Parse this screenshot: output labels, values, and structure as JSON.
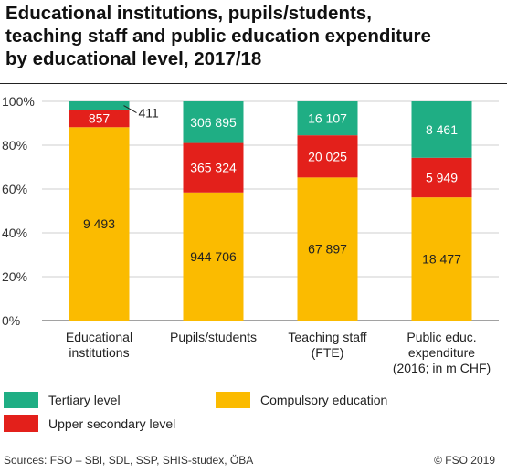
{
  "title": "Educational institutions, pupils/students,\nteaching staff and public education expenditure\nby educational level, 2017/18",
  "colors": {
    "tertiary": "#1fae84",
    "upper_secondary": "#e3201b",
    "compulsory": "#fbbb00"
  },
  "chart_data": {
    "type": "bar",
    "stacked": "percent",
    "categories": [
      "Educational\ninstitutions",
      "Pupils/students",
      "Teaching staff\n(FTE)",
      "Public educ.\nexpenditure\n(2016; in m CHF)"
    ],
    "series": [
      {
        "name": "Compulsory education",
        "values": [
          9493,
          944706,
          67897,
          18477
        ],
        "labels": [
          "9 493",
          "944 706",
          "67 897",
          "18 477"
        ]
      },
      {
        "name": "Upper secondary level",
        "values": [
          857,
          365324,
          20025,
          5949
        ],
        "labels": [
          "857",
          "365 324",
          "20 025",
          "5 949"
        ]
      },
      {
        "name": "Tertiary level",
        "values": [
          411,
          306895,
          16107,
          8461
        ],
        "labels": [
          "411",
          "306 895",
          "16 107",
          "8 461"
        ]
      }
    ],
    "ylim": [
      0,
      100
    ],
    "yticks": [
      "0%",
      "20%",
      "40%",
      "60%",
      "80%",
      "100%"
    ],
    "grid": true
  },
  "legend": {
    "tertiary": "Tertiary level",
    "upper_secondary": "Upper secondary level",
    "compulsory": "Compulsory education"
  },
  "footer": {
    "sources": "Sources: FSO – SBI, SDL, SSP, SHIS-studex, ÖBA",
    "copyright": "© FSO 2019"
  }
}
